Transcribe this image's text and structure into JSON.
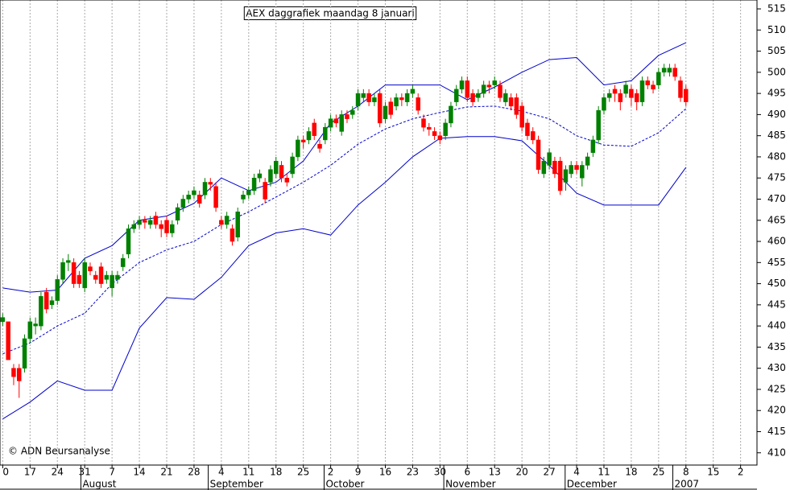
{
  "chart_data": {
    "type": "candlestick",
    "title": "AEX daggrafiek maandag 8 januari",
    "annotation": "© ADN Beursanalyse",
    "ylim": [
      407.1,
      517.1
    ],
    "yticks": [
      410,
      415,
      420,
      425,
      430,
      435,
      440,
      445,
      450,
      455,
      460,
      465,
      470,
      475,
      480,
      485,
      490,
      495,
      500,
      505,
      510,
      515
    ],
    "xlim": [
      -0.5,
      138
    ],
    "xticks": [
      {
        "value": 0,
        "label": "0"
      },
      {
        "value": 5,
        "label": "17"
      },
      {
        "value": 10,
        "label": "24"
      },
      {
        "value": 15,
        "label": "31"
      },
      {
        "value": 20,
        "label": "7"
      },
      {
        "value": 25,
        "label": "14"
      },
      {
        "value": 30,
        "label": "21"
      },
      {
        "value": 35,
        "label": "28"
      },
      {
        "value": 40,
        "label": "4"
      },
      {
        "value": 45,
        "label": "11"
      },
      {
        "value": 50,
        "label": "18"
      },
      {
        "value": 55,
        "label": "25"
      },
      {
        "value": 60,
        "label": "2"
      },
      {
        "value": 65,
        "label": "9"
      },
      {
        "value": 70,
        "label": "16"
      },
      {
        "value": 75,
        "label": "23"
      },
      {
        "value": 80,
        "label": "30"
      },
      {
        "value": 85,
        "label": "6"
      },
      {
        "value": 90,
        "label": "13"
      },
      {
        "value": 95,
        "label": "20"
      },
      {
        "value": 100,
        "label": "27"
      },
      {
        "value": 105,
        "label": "4"
      },
      {
        "value": 110,
        "label": "11"
      },
      {
        "value": 115,
        "label": "18"
      },
      {
        "value": 120,
        "label": "25"
      },
      {
        "value": 125,
        "label": "8"
      },
      {
        "value": 130,
        "label": "15"
      },
      {
        "value": 135,
        "label": "2"
      }
    ],
    "month_labels": [
      {
        "value": 14.3,
        "label": "August"
      },
      {
        "value": 37.6,
        "label": "September"
      },
      {
        "value": 58.8,
        "label": "October"
      },
      {
        "value": 80.7,
        "label": "November"
      },
      {
        "value": 102.9,
        "label": "December"
      },
      {
        "value": 122.6,
        "label": "2007"
      }
    ],
    "up_color": "#008000",
    "down_color": "#ff0000",
    "ohlc": [
      [
        441,
        443,
        440,
        442
      ],
      [
        441,
        441,
        432,
        432
      ],
      [
        430,
        431,
        426,
        428
      ],
      [
        430,
        431,
        423,
        427
      ],
      [
        430,
        438,
        429,
        437
      ],
      [
        437,
        442,
        436,
        441
      ],
      [
        440,
        442,
        438,
        440.5
      ],
      [
        440,
        448,
        439,
        447
      ],
      [
        448,
        449,
        443,
        444
      ],
      [
        445,
        447,
        444,
        446
      ],
      [
        446,
        452,
        445,
        451
      ],
      [
        451,
        456,
        450,
        455
      ],
      [
        455,
        457,
        453,
        455.5
      ],
      [
        455,
        456,
        449,
        450
      ],
      [
        452,
        453,
        449,
        450
      ],
      [
        449,
        456,
        448,
        455
      ],
      [
        454,
        455,
        452,
        453
      ],
      [
        452,
        453,
        450,
        451
      ],
      [
        454,
        455,
        449,
        450
      ],
      [
        451,
        453,
        450,
        452
      ],
      [
        449,
        453,
        447,
        452
      ],
      [
        451,
        453,
        450,
        452
      ],
      [
        454,
        457,
        453,
        456
      ],
      [
        457,
        464,
        456,
        463
      ],
      [
        463,
        465,
        462,
        464
      ],
      [
        464,
        466,
        463,
        465
      ],
      [
        465,
        466,
        463,
        464.5
      ],
      [
        464,
        466,
        463,
        465
      ],
      [
        466,
        467,
        463,
        464
      ],
      [
        464,
        465,
        461,
        463
      ],
      [
        465,
        466,
        461,
        462
      ],
      [
        462,
        465,
        461,
        464
      ],
      [
        465,
        469,
        464,
        468
      ],
      [
        468,
        471,
        467,
        470
      ],
      [
        470,
        472,
        469,
        471
      ],
      [
        471,
        473,
        470,
        472
      ],
      [
        471,
        472,
        468,
        469
      ],
      [
        471,
        475,
        470,
        474
      ],
      [
        474,
        475,
        472,
        473.5
      ],
      [
        473,
        474,
        467,
        468
      ],
      [
        465,
        466,
        463,
        464
      ],
      [
        464,
        467,
        463,
        466
      ],
      [
        463,
        464,
        459,
        460
      ],
      [
        461,
        468,
        460,
        467
      ],
      [
        470,
        472,
        469,
        471
      ],
      [
        471,
        473,
        470,
        472
      ],
      [
        472,
        476,
        471,
        475
      ],
      [
        475,
        477,
        474,
        476
      ],
      [
        474,
        475,
        469,
        470
      ],
      [
        474,
        478,
        473,
        477
      ],
      [
        476,
        480,
        475,
        479
      ],
      [
        478,
        479,
        474,
        475
      ],
      [
        475,
        476,
        473,
        474
      ],
      [
        476,
        481,
        475,
        480
      ],
      [
        480,
        485,
        479,
        484
      ],
      [
        484,
        485,
        482,
        483.5
      ],
      [
        484,
        487,
        483,
        486
      ],
      [
        488,
        489,
        484,
        485
      ],
      [
        483,
        484,
        481,
        482
      ],
      [
        484,
        488,
        483,
        487
      ],
      [
        487,
        490,
        486,
        489
      ],
      [
        489,
        490,
        487,
        488
      ],
      [
        486,
        491,
        485,
        490
      ],
      [
        490,
        491,
        488,
        489
      ],
      [
        490,
        492,
        489,
        491
      ],
      [
        492,
        496,
        491,
        495
      ],
      [
        494,
        496,
        493,
        495
      ],
      [
        495,
        496,
        492,
        493
      ],
      [
        493,
        495,
        492,
        494
      ],
      [
        495,
        496,
        487,
        488
      ],
      [
        489,
        493,
        488,
        492
      ],
      [
        493,
        494,
        489,
        490
      ],
      [
        492,
        495,
        491,
        494
      ],
      [
        494,
        495,
        492,
        493.5
      ],
      [
        493,
        496,
        492,
        495
      ],
      [
        495,
        497,
        494,
        496
      ],
      [
        494,
        495,
        490,
        491
      ],
      [
        489,
        490,
        486,
        487
      ],
      [
        487,
        488,
        485,
        486.5
      ],
      [
        486,
        487,
        484,
        485
      ],
      [
        485,
        486,
        483,
        484
      ],
      [
        485,
        489,
        484,
        488
      ],
      [
        488,
        493,
        487,
        492
      ],
      [
        493,
        497,
        492,
        496
      ],
      [
        496,
        499,
        495,
        498
      ],
      [
        498,
        499,
        493,
        494
      ],
      [
        495,
        496,
        492,
        493
      ],
      [
        494,
        496,
        493,
        495
      ],
      [
        495,
        498,
        494,
        497
      ],
      [
        497,
        498,
        495,
        496.5
      ],
      [
        497,
        499,
        496,
        498
      ],
      [
        497,
        498,
        493,
        494
      ],
      [
        493,
        496,
        492,
        495
      ],
      [
        494,
        495,
        491,
        492
      ],
      [
        494,
        495,
        489,
        490
      ],
      [
        492,
        493,
        486,
        487
      ],
      [
        488,
        489,
        484,
        485
      ],
      [
        486,
        487,
        483,
        484
      ],
      [
        484,
        485,
        476,
        477
      ],
      [
        476,
        480,
        475,
        479
      ],
      [
        478,
        482,
        477,
        481
      ],
      [
        479,
        480,
        475,
        476
      ],
      [
        479,
        480,
        471,
        472
      ],
      [
        474,
        478,
        472,
        477
      ],
      [
        476,
        479,
        475,
        478
      ],
      [
        478,
        479,
        476,
        477
      ],
      [
        475,
        479,
        473,
        478
      ],
      [
        478,
        481,
        477,
        480
      ],
      [
        481,
        485,
        480,
        484
      ],
      [
        484,
        492,
        483,
        491
      ],
      [
        491,
        495,
        490,
        494
      ],
      [
        494,
        496,
        493,
        495
      ],
      [
        496,
        497,
        493,
        495
      ],
      [
        495,
        496,
        491,
        493
      ],
      [
        495,
        498,
        494,
        497
      ],
      [
        496,
        497,
        492,
        494
      ],
      [
        495,
        496,
        491,
        493
      ],
      [
        493,
        499,
        492,
        498
      ],
      [
        498,
        499,
        496,
        497
      ],
      [
        497,
        498,
        495,
        496
      ],
      [
        497,
        501,
        496,
        500
      ],
      [
        500,
        502,
        499,
        501
      ],
      [
        500,
        502,
        499,
        501
      ],
      [
        501,
        502,
        498,
        499
      ],
      [
        498,
        499,
        493,
        494
      ],
      [
        496,
        497,
        492,
        493
      ]
    ],
    "bands": {
      "color": "#0000cc",
      "x": [
        0,
        5,
        10,
        15,
        20,
        25,
        30,
        35,
        40,
        45,
        50,
        55,
        60,
        65,
        70,
        75,
        80,
        85,
        90,
        95,
        100,
        105,
        110,
        115,
        120,
        125
      ],
      "upper": [
        449,
        448,
        448.5,
        456,
        459,
        465,
        466,
        469,
        475,
        472,
        474,
        479,
        488,
        492,
        497,
        497,
        497,
        493.5,
        496.5,
        500,
        503,
        503.5,
        497,
        498,
        504,
        507
      ],
      "middle": [
        433.4,
        436,
        440,
        443,
        450,
        455,
        458,
        460,
        464,
        467,
        470.5,
        474,
        478,
        483,
        486.6,
        489,
        490.5,
        491.8,
        492,
        490.8,
        489,
        485,
        482.8,
        482.5,
        485.7,
        491.4
      ],
      "lower": [
        418,
        422,
        427,
        424.8,
        424.8,
        439.5,
        446.7,
        446.3,
        451.5,
        459,
        462,
        463,
        461.5,
        468.6,
        474,
        480,
        484.4,
        484.8,
        484.8,
        483.8,
        478,
        471.4,
        468.6,
        468.6,
        468.6,
        477.5
      ]
    }
  }
}
